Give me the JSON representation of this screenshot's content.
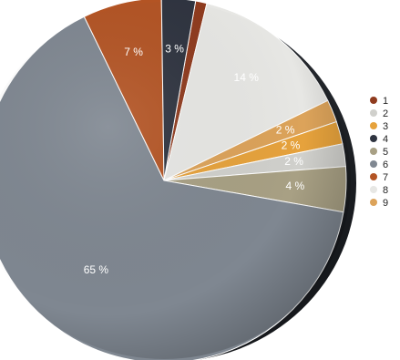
{
  "chart_data": {
    "type": "pie",
    "title": "",
    "slices": [
      {
        "label": "1",
        "value": 1,
        "color": "#8f3b1e",
        "text": ""
      },
      {
        "label": "2",
        "value": 2,
        "color": "#d0d0cc",
        "text": "2 %"
      },
      {
        "label": "3",
        "value": 2,
        "color": "#e6a23c",
        "text": "2 %"
      },
      {
        "label": "4",
        "value": 3,
        "color": "#2f3440",
        "text": "3 %"
      },
      {
        "label": "5",
        "value": 4,
        "color": "#a8a084",
        "text": "4 %"
      },
      {
        "label": "6",
        "value": 65,
        "color": "#7f8791",
        "text": "65 %"
      },
      {
        "label": "7",
        "value": 7,
        "color": "#b35424",
        "text": "7 %"
      },
      {
        "label": "8",
        "value": 14,
        "color": "#e7e7e4",
        "text": "14 %"
      },
      {
        "label": "9",
        "value": 2,
        "color": "#dca35a",
        "text": "2 %"
      }
    ],
    "legend": {
      "placement": "right",
      "entries": [
        "1",
        "2",
        "3",
        "4",
        "5",
        "6",
        "7",
        "8",
        "9"
      ]
    }
  }
}
